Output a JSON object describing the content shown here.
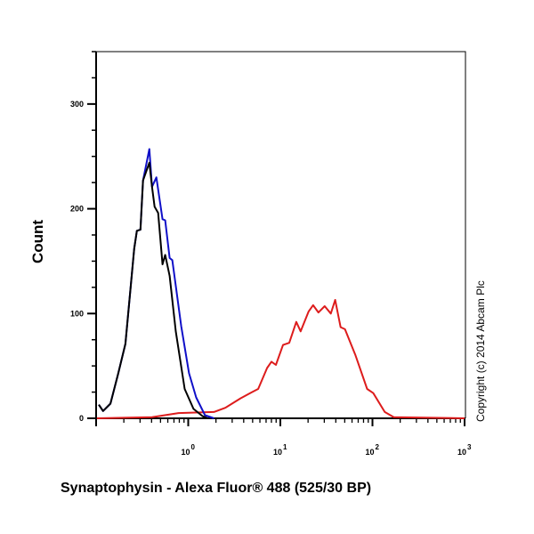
{
  "chart_data": {
    "type": "line",
    "title": "",
    "xlabel": "Synaptophysin  - Alexa Fluor® 488 (525/30 BP)",
    "ylabel": "Count",
    "x_scale": "log",
    "xlim": [
      0.1,
      1000
    ],
    "ylim": [
      0,
      350
    ],
    "x_ticks": [
      {
        "base": "10",
        "exp": "0",
        "value": 1
      },
      {
        "base": "10",
        "exp": "1",
        "value": 10
      },
      {
        "base": "10",
        "exp": "2",
        "value": 100
      },
      {
        "base": "10",
        "exp": "3",
        "value": 1000
      }
    ],
    "y_ticks": [
      {
        "label": "0",
        "value": 0
      },
      {
        "label": "100",
        "value": 100
      },
      {
        "label": "200",
        "value": 200
      },
      {
        "label": "300",
        "value": 300
      }
    ],
    "y_minor_step": 25,
    "grid": false,
    "annotation": "Copyright (c) 2014 Abcam Plc",
    "series": [
      {
        "color": "#1010c8",
        "x": [
          0.107,
          0.119,
          0.143,
          0.174,
          0.208,
          0.259,
          0.277,
          0.303,
          0.323,
          0.378,
          0.404,
          0.451,
          0.526,
          0.562,
          0.628,
          0.671,
          0.838,
          1.02,
          1.22,
          1.52,
          1.9
        ],
        "y": [
          13,
          7,
          14,
          43,
          71,
          162,
          179,
          180,
          227,
          257,
          221,
          230,
          190,
          189,
          153,
          151,
          88,
          43,
          20,
          3,
          0
        ]
      },
      {
        "color": "#000000",
        "x": [
          0.107,
          0.119,
          0.143,
          0.174,
          0.208,
          0.259,
          0.277,
          0.303,
          0.323,
          0.378,
          0.404,
          0.431,
          0.471,
          0.526,
          0.562,
          0.628,
          0.733,
          0.915,
          1.14,
          1.43,
          1.63
        ],
        "y": [
          13,
          7,
          14,
          43,
          71,
          162,
          179,
          180,
          227,
          244,
          221,
          202,
          196,
          147,
          156,
          136,
          83,
          28,
          9,
          2,
          0
        ]
      },
      {
        "color": "#dd1c1c",
        "x": [
          0.102,
          0.404,
          0.784,
          1.9,
          2.53,
          3.69,
          4.92,
          5.75,
          7.18,
          8.01,
          8.95,
          10.7,
          12.5,
          14.9,
          16.6,
          20.3,
          22.7,
          25.9,
          30.3,
          35.3,
          39.4,
          45.1,
          50.3,
          65.6,
          87.5,
          102,
          136,
          170,
          1000
        ],
        "y": [
          0,
          1,
          5,
          6,
          10,
          19,
          25,
          28,
          48,
          54,
          51,
          70,
          72,
          92,
          83,
          102,
          108,
          101,
          107,
          100,
          113,
          87,
          85,
          60,
          28,
          24,
          6,
          1,
          0
        ]
      }
    ]
  }
}
